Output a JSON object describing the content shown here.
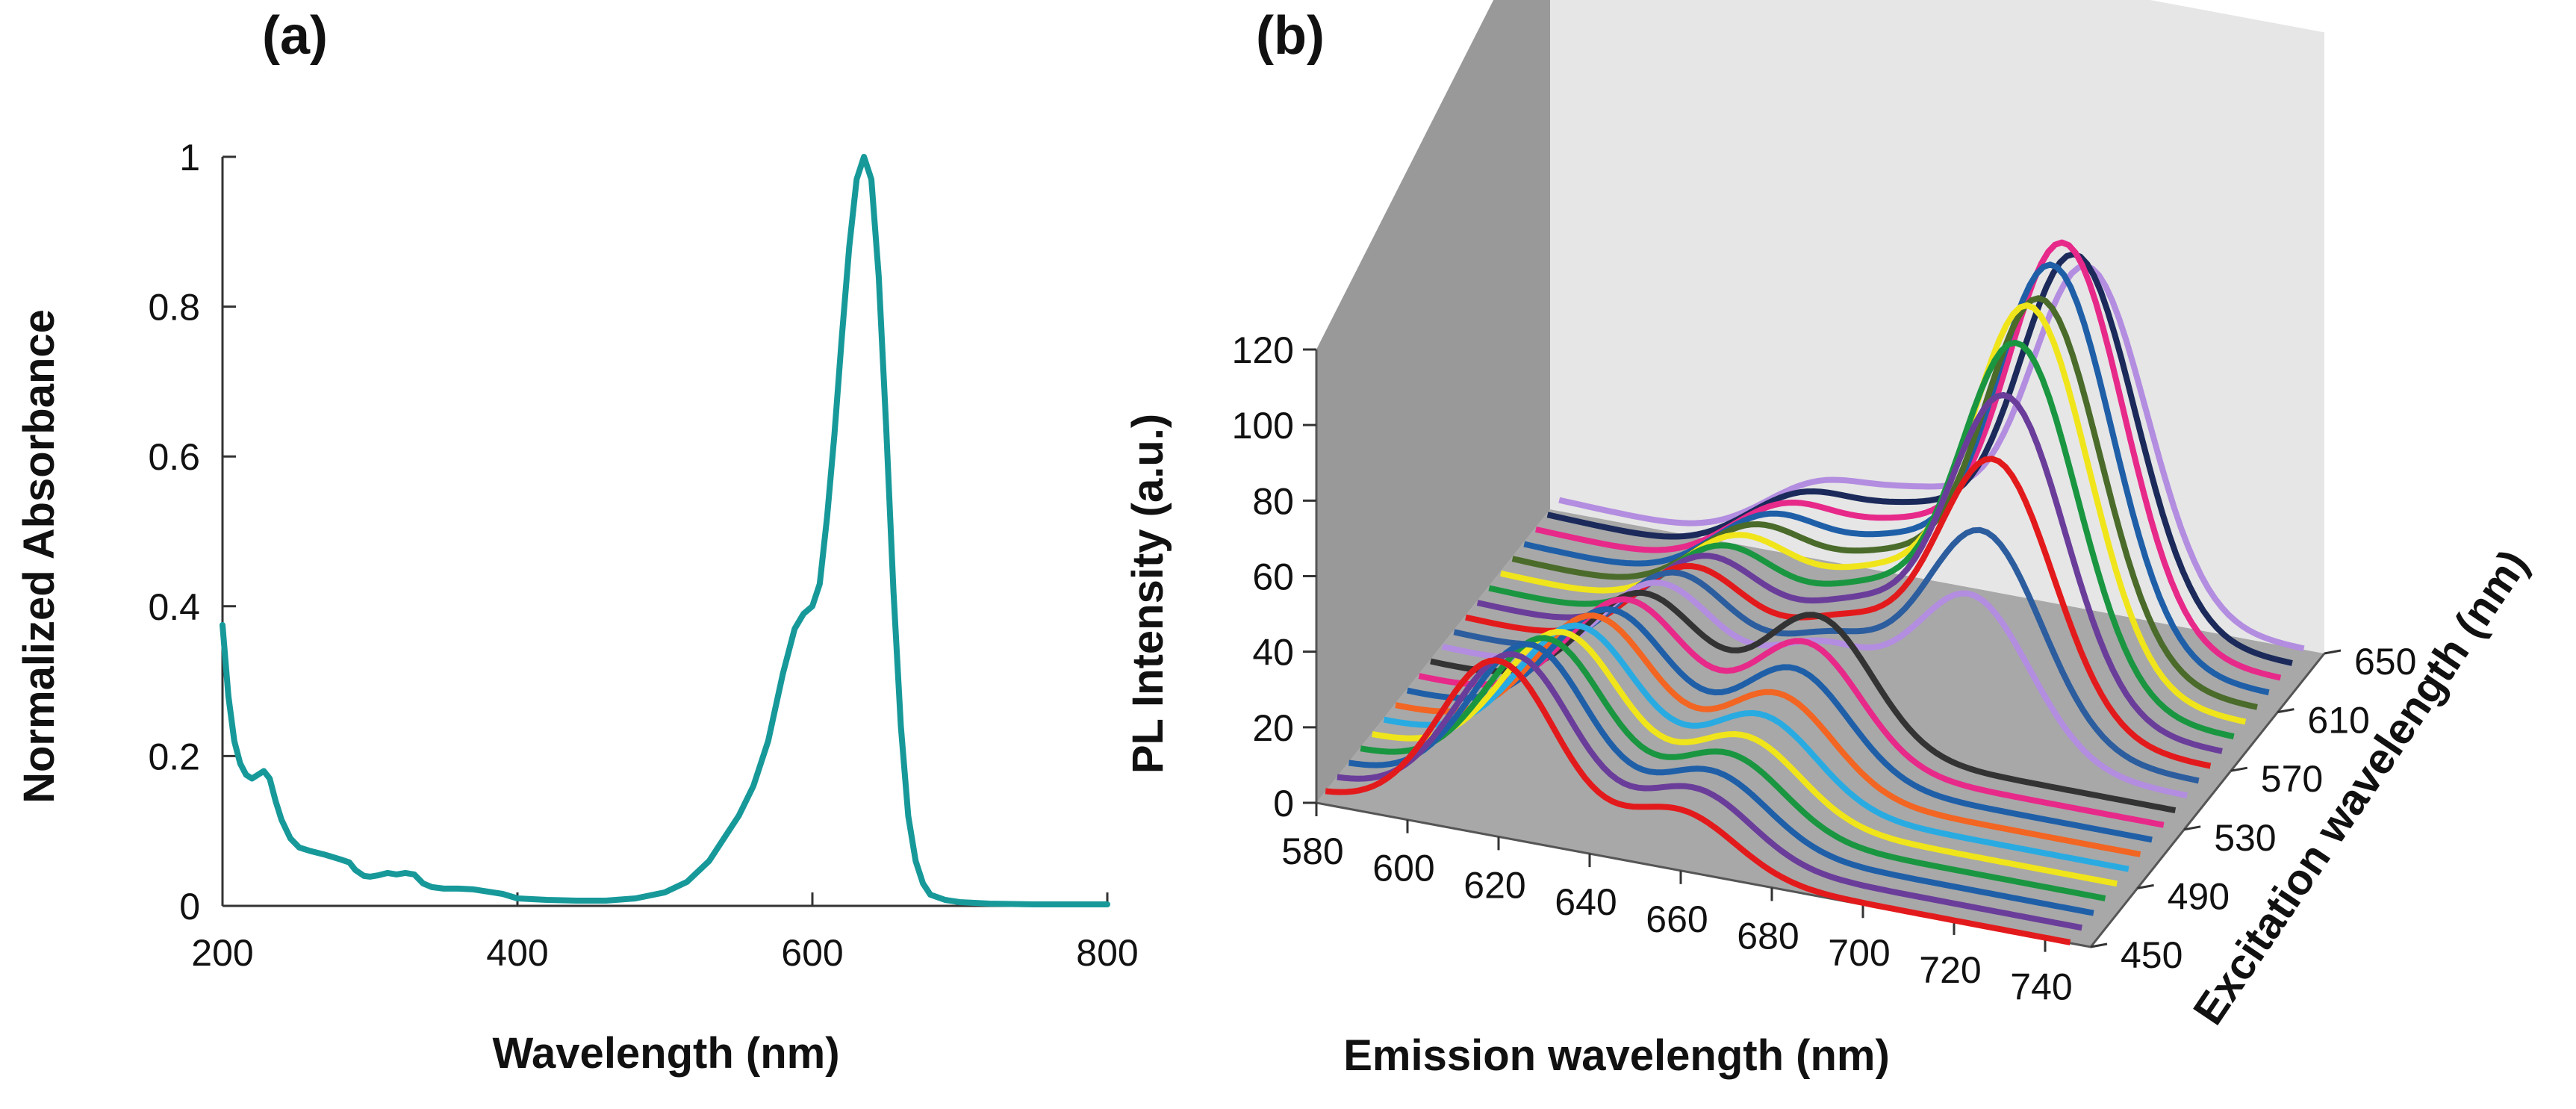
{
  "chart_data": [
    {
      "type": "line",
      "panel_label": "(a)",
      "xlabel": "Wavelength (nm)",
      "ylabel": "Normalized Absorbance",
      "xlim": [
        200,
        800
      ],
      "ylim": [
        0,
        1
      ],
      "xticks": [
        200,
        400,
        600,
        800
      ],
      "xtick_labels": [
        "200",
        "400",
        "600",
        "800"
      ],
      "yticks": [
        0,
        0.2,
        0.4,
        0.6,
        0.8,
        1
      ],
      "ytick_labels": [
        "0",
        "0.2",
        "0.4",
        "0.6",
        "0.8",
        "1"
      ],
      "grid": false,
      "color": "#17999a",
      "series": [
        {
          "name": "Absorbance",
          "x": [
            200,
            204,
            208,
            212,
            216,
            220,
            224,
            228,
            232,
            236,
            240,
            246,
            252,
            260,
            270,
            280,
            286,
            290,
            296,
            300,
            306,
            312,
            318,
            324,
            330,
            336,
            342,
            350,
            360,
            370,
            380,
            390,
            400,
            420,
            440,
            460,
            480,
            500,
            515,
            530,
            540,
            550,
            560,
            570,
            580,
            588,
            594,
            600,
            605,
            610,
            615,
            620,
            625,
            630,
            635,
            640,
            645,
            650,
            655,
            660,
            665,
            670,
            675,
            680,
            690,
            700,
            720,
            750,
            780,
            800
          ],
          "values": [
            0.375,
            0.28,
            0.22,
            0.19,
            0.175,
            0.17,
            0.175,
            0.18,
            0.17,
            0.14,
            0.115,
            0.09,
            0.078,
            0.073,
            0.068,
            0.062,
            0.058,
            0.048,
            0.04,
            0.039,
            0.041,
            0.044,
            0.042,
            0.044,
            0.042,
            0.03,
            0.025,
            0.023,
            0.023,
            0.022,
            0.019,
            0.016,
            0.01,
            0.008,
            0.007,
            0.007,
            0.01,
            0.018,
            0.032,
            0.06,
            0.09,
            0.12,
            0.16,
            0.22,
            0.31,
            0.37,
            0.39,
            0.4,
            0.43,
            0.52,
            0.63,
            0.76,
            0.88,
            0.97,
            1.0,
            0.97,
            0.84,
            0.64,
            0.42,
            0.24,
            0.12,
            0.06,
            0.03,
            0.015,
            0.008,
            0.005,
            0.003,
            0.002,
            0.002,
            0.002
          ]
        }
      ]
    },
    {
      "type": "line",
      "subtype": "3d-waterfall",
      "panel_label": "(b)",
      "xlabel": "Emission wavelength (nm)",
      "ylabel": "PL Intensity (a.u.)",
      "zlabel": "Excitation wavelength (nm)",
      "xlim": [
        580,
        750
      ],
      "ylim": [
        0,
        120
      ],
      "zlim": [
        450,
        650
      ],
      "xticks": [
        580,
        600,
        620,
        640,
        660,
        680,
        700,
        720,
        740
      ],
      "xtick_labels": [
        "580",
        "600",
        "620",
        "640",
        "660",
        "680",
        "700",
        "720",
        "740"
      ],
      "yticks": [
        0,
        20,
        40,
        60,
        80,
        100,
        120
      ],
      "ytick_labels": [
        "0",
        "20",
        "40",
        "60",
        "80",
        "100",
        "120"
      ],
      "zticks": [
        450,
        490,
        530,
        570,
        610,
        650
      ],
      "ztick_labels": [
        "450",
        "490",
        "530",
        "570",
        "610",
        "650"
      ],
      "grid": false,
      "colors": {
        "left_wall": "#999999",
        "back_wall": "#e6e6e6",
        "floor": "#a8a8a8",
        "edge": "#555555"
      },
      "series": [
        {
          "name": "450",
          "color": "#e31a1c",
          "peak1_x": 620,
          "peak1": 45,
          "peak2_x": 660,
          "peak2": 15,
          "peak3_x": 698,
          "peak3": 0
        },
        {
          "name": "460",
          "color": "#6a3d9a",
          "peak1_x": 621,
          "peak1": 43,
          "peak2_x": 661,
          "peak2": 17,
          "peak3_x": 698,
          "peak3": 0
        },
        {
          "name": "470",
          "color": "#1f5fa8",
          "peak1_x": 622,
          "peak1": 42,
          "peak2_x": 662,
          "peak2": 18,
          "peak3_x": 698,
          "peak3": 0
        },
        {
          "name": "480",
          "color": "#1a9641",
          "peak1_x": 623,
          "peak1": 40,
          "peak2_x": 663,
          "peak2": 19,
          "peak3_x": 698,
          "peak3": 0
        },
        {
          "name": "490",
          "color": "#f0e51a",
          "peak1_x": 624,
          "peak1": 38,
          "peak2_x": 664,
          "peak2": 20,
          "peak3_x": 698,
          "peak3": 0
        },
        {
          "name": "500",
          "color": "#29abe2",
          "peak1_x": 625,
          "peak1": 36,
          "peak2_x": 665,
          "peak2": 22,
          "peak3_x": 698,
          "peak3": 0
        },
        {
          "name": "510",
          "color": "#f26522",
          "peak1_x": 626,
          "peak1": 35,
          "peak2_x": 666,
          "peak2": 24,
          "peak3_x": 698,
          "peak3": 0
        },
        {
          "name": "520",
          "color": "#1f5fa8",
          "peak1_x": 627,
          "peak1": 33,
          "peak2_x": 667,
          "peak2": 27,
          "peak3_x": 698,
          "peak3": 0
        },
        {
          "name": "530",
          "color": "#e7298a",
          "peak1_x": 628,
          "peak1": 32,
          "peak2_x": 667,
          "peak2": 30,
          "peak3_x": 698,
          "peak3": 0
        },
        {
          "name": "540",
          "color": "#333333",
          "peak1_x": 629,
          "peak1": 30,
          "peak2_x": 667,
          "peak2": 33,
          "peak3_x": 698,
          "peak3": 0
        },
        {
          "name": "550",
          "color": "#b38de0",
          "peak1_x": 630,
          "peak1": 29,
          "peak2_x": 665,
          "peak2": 20,
          "peak3_x": 698,
          "peak3": 42
        },
        {
          "name": "560",
          "color": "#2c5d9e",
          "peak1_x": 631,
          "peak1": 28,
          "peak2_x": 665,
          "peak2": 18,
          "peak3_x": 698,
          "peak3": 55
        },
        {
          "name": "570",
          "color": "#e31a1c",
          "peak1_x": 632,
          "peak1": 26,
          "peak2_x": 665,
          "peak2": 18,
          "peak3_x": 698,
          "peak3": 70
        },
        {
          "name": "580",
          "color": "#6a3d9a",
          "peak1_x": 633,
          "peak1": 25,
          "peak2_x": 665,
          "peak2": 18,
          "peak3_x": 698,
          "peak3": 83
        },
        {
          "name": "590",
          "color": "#1a9641",
          "peak1_x": 634,
          "peak1": 24,
          "peak2_x": 665,
          "peak2": 18,
          "peak3_x": 698,
          "peak3": 93
        },
        {
          "name": "600",
          "color": "#f0e51a",
          "peak1_x": 635,
          "peak1": 23,
          "peak2_x": 665,
          "peak2": 18,
          "peak3_x": 698,
          "peak3": 99
        },
        {
          "name": "610",
          "color": "#4a6b2a",
          "peak1_x": 636,
          "peak1": 22,
          "peak2_x": 665,
          "peak2": 18,
          "peak3_x": 698,
          "peak3": 97
        },
        {
          "name": "620",
          "color": "#1f5fa8",
          "peak1_x": 637,
          "peak1": 21,
          "peak2_x": 665,
          "peak2": 18,
          "peak3_x": 698,
          "peak3": 102
        },
        {
          "name": "630",
          "color": "#e7298a",
          "peak1_x": 638,
          "peak1": 20,
          "peak2_x": 665,
          "peak2": 18,
          "peak3_x": 698,
          "peak3": 104
        },
        {
          "name": "640",
          "color": "#1b2a5a",
          "peak1_x": 639,
          "peak1": 19,
          "peak2_x": 665,
          "peak2": 18,
          "peak3_x": 698,
          "peak3": 97
        },
        {
          "name": "650",
          "color": "#b38de0",
          "peak1_x": 640,
          "peak1": 18,
          "peak2_x": 665,
          "peak2": 18,
          "peak3_x": 698,
          "peak3": 90
        }
      ]
    }
  ]
}
